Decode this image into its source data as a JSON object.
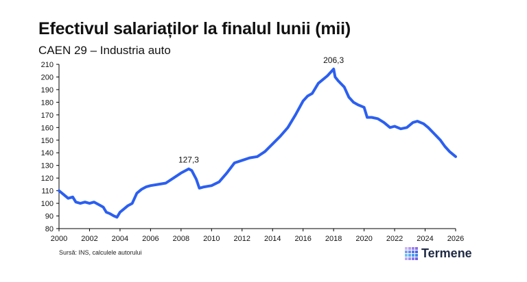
{
  "title": "Efectivul salariaților la finalul lunii (mii)",
  "subtitle": "CAEN 29 – Industria auto",
  "source": "Sursă: INS, calculele autorului",
  "logo": {
    "text": "Termene",
    "icon": "termene-logo-grid",
    "accent": "#e8323c"
  },
  "colors": {
    "line": "#2b5ff0",
    "axis": "#000000"
  },
  "chart_data": {
    "type": "line",
    "x": [
      2000.0,
      2000.3,
      2000.6,
      2000.9,
      2001.1,
      2001.4,
      2001.7,
      2002.0,
      2002.3,
      2002.6,
      2002.9,
      2003.1,
      2003.3,
      2003.6,
      2003.8,
      2004.0,
      2004.2,
      2004.5,
      2004.8,
      2005.1,
      2005.4,
      2005.7,
      2006.0,
      2006.5,
      2007.0,
      2007.5,
      2008.0,
      2008.5,
      2008.7,
      2009.0,
      2009.2,
      2009.5,
      2010.0,
      2010.5,
      2011.0,
      2011.5,
      2012.0,
      2012.5,
      2013.0,
      2013.5,
      2014.0,
      2014.5,
      2015.0,
      2015.5,
      2016.0,
      2016.3,
      2016.6,
      2017.0,
      2017.3,
      2017.6,
      2018.0,
      2018.1,
      2018.3,
      2018.7,
      2019.0,
      2019.3,
      2019.6,
      2020.0,
      2020.2,
      2020.5,
      2020.9,
      2021.3,
      2021.7,
      2022.0,
      2022.4,
      2022.8,
      2023.2,
      2023.5,
      2023.9,
      2024.2,
      2024.6,
      2025.0,
      2025.3,
      2025.6,
      2026.0
    ],
    "y": [
      110,
      107,
      104,
      105,
      101,
      100,
      101,
      100,
      101,
      99,
      97,
      93,
      92,
      90,
      89,
      93,
      95,
      98,
      100,
      108,
      111,
      113,
      114,
      115,
      116,
      120,
      124,
      127.3,
      126,
      119,
      112,
      113,
      114,
      117,
      124,
      132,
      134,
      136,
      137,
      141,
      147,
      153,
      160,
      170,
      181,
      185,
      187,
      195,
      198,
      201,
      206.3,
      200,
      197,
      192,
      184,
      180,
      178,
      176,
      168,
      168,
      167,
      164,
      160,
      161,
      159,
      160,
      164,
      165,
      163,
      160,
      155,
      150,
      145,
      141,
      137
    ],
    "xlim": [
      2000,
      2026
    ],
    "ylim": [
      80,
      210
    ],
    "xticks": [
      2000,
      2002,
      2004,
      2006,
      2008,
      2010,
      2012,
      2014,
      2016,
      2018,
      2020,
      2022,
      2024,
      2026
    ],
    "yticks": [
      80,
      90,
      100,
      110,
      120,
      130,
      140,
      150,
      160,
      170,
      180,
      190,
      200,
      210
    ],
    "annotations": [
      {
        "x": 2008.5,
        "y": 127.3,
        "text": "127,3"
      },
      {
        "x": 2018.0,
        "y": 206.3,
        "text": "206,3"
      }
    ],
    "grid": false,
    "legend": "none"
  }
}
